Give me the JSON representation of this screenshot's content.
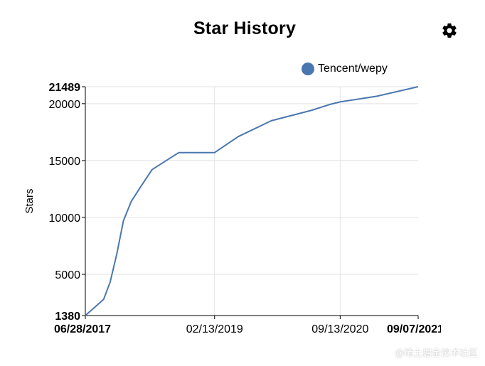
{
  "header": {
    "settings_icon": "gear-icon"
  },
  "watermark": "@稀土掘金技术社区",
  "colors": {
    "series": "#4a77af",
    "grid": "#e2e2e2",
    "axis": "#000000"
  },
  "chart_data": {
    "type": "line",
    "title": "Star History",
    "ylabel": "Stars",
    "xlabel": "",
    "legend_position": "top-right",
    "grid": true,
    "series": [
      {
        "name": "Tencent/wepy",
        "points": [
          [
            "2017-06-28",
            1380
          ],
          [
            "2017-09-20",
            2800
          ],
          [
            "2017-10-20",
            4300
          ],
          [
            "2017-11-20",
            6800
          ],
          [
            "2017-12-20",
            9700
          ],
          [
            "2018-01-25",
            11400
          ],
          [
            "2018-03-10",
            12700
          ],
          [
            "2018-05-01",
            14200
          ],
          [
            "2018-09-01",
            15700
          ],
          [
            "2019-02-13",
            15700
          ],
          [
            "2019-06-01",
            17100
          ],
          [
            "2019-11-01",
            18500
          ],
          [
            "2020-05-01",
            19400
          ],
          [
            "2020-08-01",
            19950
          ],
          [
            "2020-09-13",
            20150
          ],
          [
            "2021-03-01",
            20650
          ],
          [
            "2021-09-07",
            21489
          ]
        ]
      }
    ],
    "y_ticks": [
      1380,
      5000,
      10000,
      15000,
      20000,
      21489
    ],
    "y_ticks_bold": [
      1380,
      21489
    ],
    "x_ticks": [
      {
        "date": "2017-06-28",
        "label": "06/28/2017",
        "bold": true
      },
      {
        "date": "2019-02-13",
        "label": "02/13/2019",
        "bold": false
      },
      {
        "date": "2020-09-13",
        "label": "09/13/2020",
        "bold": false
      },
      {
        "date": "2021-09-07",
        "label": "09/07/2021",
        "bold": true
      }
    ],
    "ylim": [
      1380,
      21489
    ],
    "xlim": [
      "2017-06-28",
      "2021-09-07"
    ]
  }
}
